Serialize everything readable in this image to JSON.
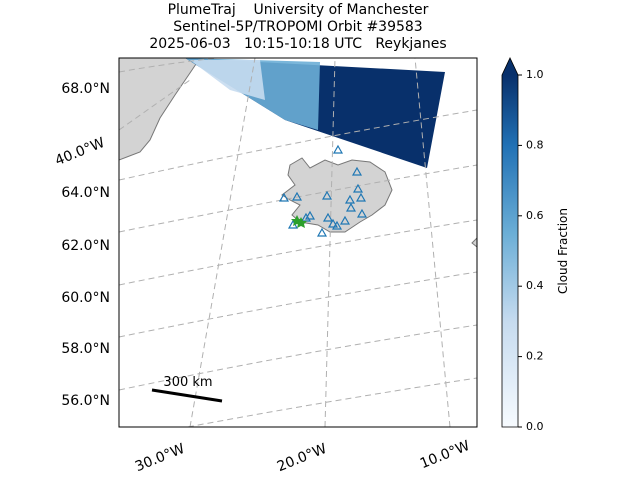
{
  "title": [
    "PlumeTraj    University of Manchester",
    "Sentinel-5P/TROPOMI Orbit #39583",
    "2025-06-03   10:15-10:18 UTC   Reykjanes"
  ],
  "map": {
    "lat_labels": [
      "68.0°N",
      "64.0°N",
      "62.0°N",
      "60.0°N",
      "58.0°N",
      "56.0°N"
    ],
    "lon_labels": [
      "40.0°W",
      "30.0°W",
      "20.0°W",
      "10.0°W"
    ],
    "scale_bar": "300 km"
  },
  "colorbar": {
    "label": "Cloud Fraction",
    "lim": [
      0,
      1
    ],
    "ticks": [
      {
        "value": 0,
        "label": "0.0"
      },
      {
        "value": 0.2,
        "label": "0.2"
      },
      {
        "value": 0.4,
        "label": "0.4"
      },
      {
        "value": 0.6,
        "label": "0.6"
      },
      {
        "value": 0.8,
        "label": "0.8"
      },
      {
        "value": 1,
        "label": "1.0"
      }
    ]
  }
}
